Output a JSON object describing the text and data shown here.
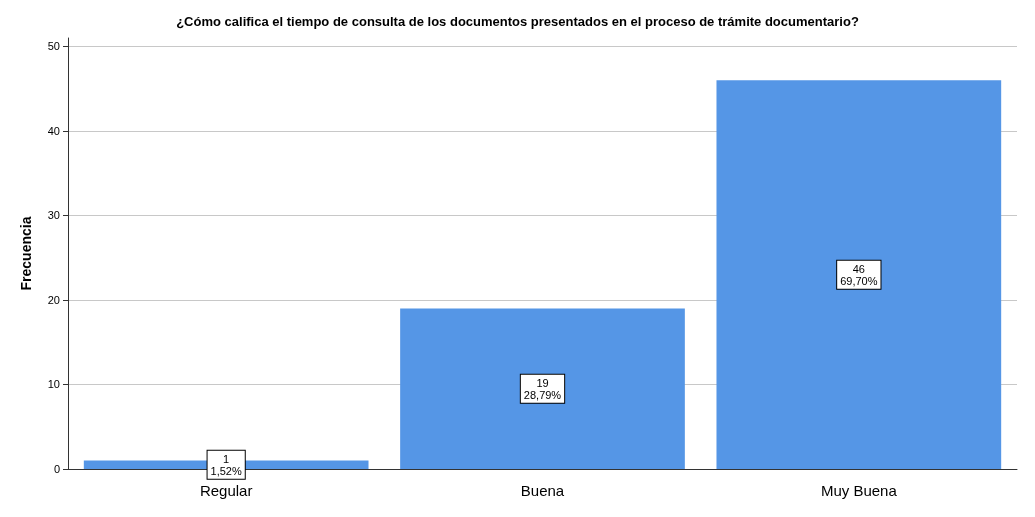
{
  "chart_data": {
    "type": "bar",
    "title": "¿Cómo califica el tiempo de consulta de los documentos presentados en el proceso de trámite documentario?",
    "ylabel": "Frecuencia",
    "categories": [
      "Regular",
      "Buena",
      "Muy Buena"
    ],
    "values": [
      1,
      19,
      46
    ],
    "color": "#5596e6",
    "value_labels": [
      "1\n1,52%",
      "19\n28,79%",
      "46\n69,70%"
    ],
    "ylim": [
      0,
      51
    ],
    "yticks": [
      0,
      10,
      20,
      30,
      40,
      50
    ],
    "grid": "y"
  }
}
